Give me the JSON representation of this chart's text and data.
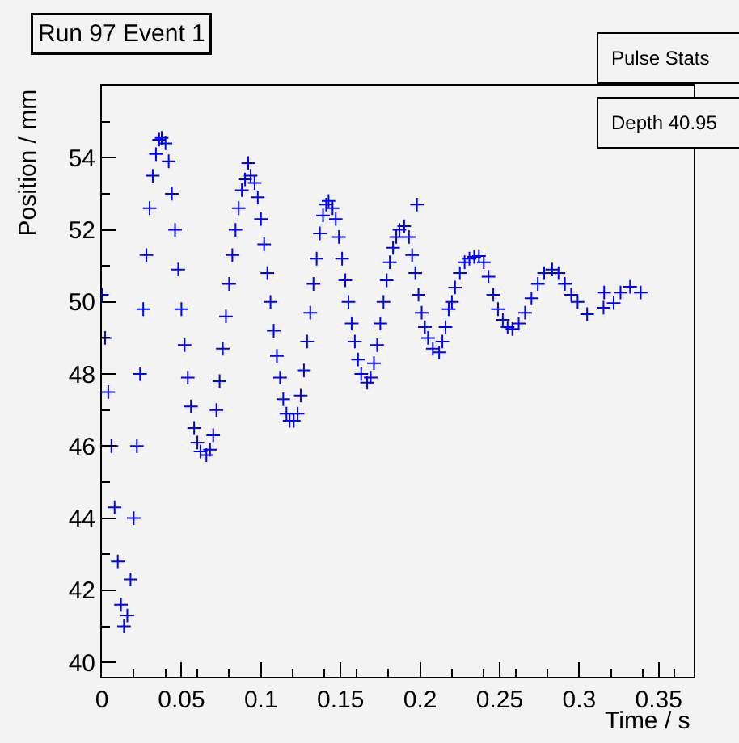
{
  "chart_data": {
    "type": "scatter",
    "title": "Run 97 Event 1",
    "xlabel": "Time / s",
    "ylabel": "Position / mm",
    "annotations": [
      "Pulse Stats",
      "Depth 40.95"
    ],
    "marker": "cross",
    "grid": false,
    "xlim": [
      0,
      0.372
    ],
    "xticks": [
      0,
      0.05,
      0.1,
      0.15,
      0.2,
      0.25,
      0.3,
      0.35
    ],
    "ylim": [
      39.6,
      56
    ],
    "yticks": [
      40,
      42,
      44,
      46,
      48,
      50,
      52,
      54
    ],
    "series": [
      {
        "color": "#0000ff",
        "x": [
          0,
          0.002,
          0.004,
          0.006,
          0.008,
          0.01,
          0.012,
          0.0139,
          0.016,
          0.018,
          0.02,
          0.022,
          0.024,
          0.026,
          0.028,
          0.03,
          0.032,
          0.034,
          0.036,
          0.0376,
          0.04,
          0.042,
          0.044,
          0.046,
          0.048,
          0.05,
          0.052,
          0.054,
          0.056,
          0.058,
          0.06,
          0.062,
          0.0657,
          0.068,
          0.07,
          0.072,
          0.074,
          0.076,
          0.078,
          0.08,
          0.082,
          0.084,
          0.086,
          0.088,
          0.09,
          0.092,
          0.0935,
          0.096,
          0.098,
          0.1,
          0.102,
          0.104,
          0.106,
          0.108,
          0.11,
          0.112,
          0.114,
          0.116,
          0.118,
          0.1206,
          0.123,
          0.125,
          0.127,
          0.129,
          0.131,
          0.133,
          0.135,
          0.137,
          0.139,
          0.141,
          0.1425,
          0.145,
          0.147,
          0.149,
          0.151,
          0.153,
          0.155,
          0.157,
          0.159,
          0.161,
          0.163,
          0.1667,
          0.169,
          0.171,
          0.173,
          0.175,
          0.177,
          0.179,
          0.181,
          0.183,
          0.185,
          0.187,
          0.19,
          0.193,
          0.195,
          0.197,
          0.198,
          0.199,
          0.201,
          0.203,
          0.205,
          0.208,
          0.212,
          0.214,
          0.216,
          0.218,
          0.22,
          0.222,
          0.225,
          0.228,
          0.231,
          0.234,
          0.237,
          0.24,
          0.243,
          0.246,
          0.249,
          0.252,
          0.255,
          0.258,
          0.262,
          0.266,
          0.27,
          0.274,
          0.278,
          0.283,
          0.287,
          0.291,
          0.295,
          0.299,
          0.305,
          0.3153,
          0.3157,
          0.3217,
          0.326,
          0.332,
          0.3387
        ],
        "values": [
          50.2,
          49.0,
          47.5,
          46.0,
          44.3,
          42.8,
          41.6,
          41.0,
          41.3,
          42.3,
          44.0,
          46.0,
          48.0,
          49.8,
          51.3,
          52.6,
          53.5,
          54.1,
          54.5,
          54.55,
          54.4,
          53.9,
          53.0,
          52.0,
          50.9,
          49.8,
          48.8,
          47.9,
          47.1,
          46.5,
          46.1,
          45.85,
          45.75,
          45.9,
          46.3,
          47.0,
          47.8,
          48.7,
          49.6,
          50.5,
          51.3,
          52.0,
          52.6,
          53.1,
          53.4,
          53.85,
          53.5,
          53.3,
          52.9,
          52.3,
          51.6,
          50.8,
          50.0,
          49.2,
          48.5,
          47.9,
          47.3,
          46.9,
          46.7,
          46.7,
          46.9,
          47.4,
          48.1,
          48.9,
          49.7,
          50.5,
          51.2,
          51.9,
          52.4,
          52.7,
          52.8,
          52.6,
          52.3,
          51.8,
          51.2,
          50.6,
          50.0,
          49.4,
          48.9,
          48.4,
          48.0,
          47.76,
          47.9,
          48.3,
          48.8,
          49.4,
          50.0,
          50.6,
          51.1,
          51.5,
          51.8,
          52.0,
          52.1,
          51.8,
          51.3,
          50.8,
          52.7,
          50.2,
          49.7,
          49.3,
          49.0,
          48.7,
          48.6,
          48.9,
          49.3,
          49.8,
          50.0,
          50.4,
          50.8,
          51.1,
          51.2,
          51.25,
          51.27,
          51.1,
          50.7,
          50.2,
          49.8,
          49.5,
          49.3,
          49.25,
          49.4,
          49.7,
          50.1,
          50.5,
          50.8,
          50.9,
          50.8,
          50.5,
          50.2,
          50.0,
          49.66,
          49.84,
          50.26,
          49.97,
          50.26,
          50.42,
          50.26
        ]
      }
    ]
  }
}
